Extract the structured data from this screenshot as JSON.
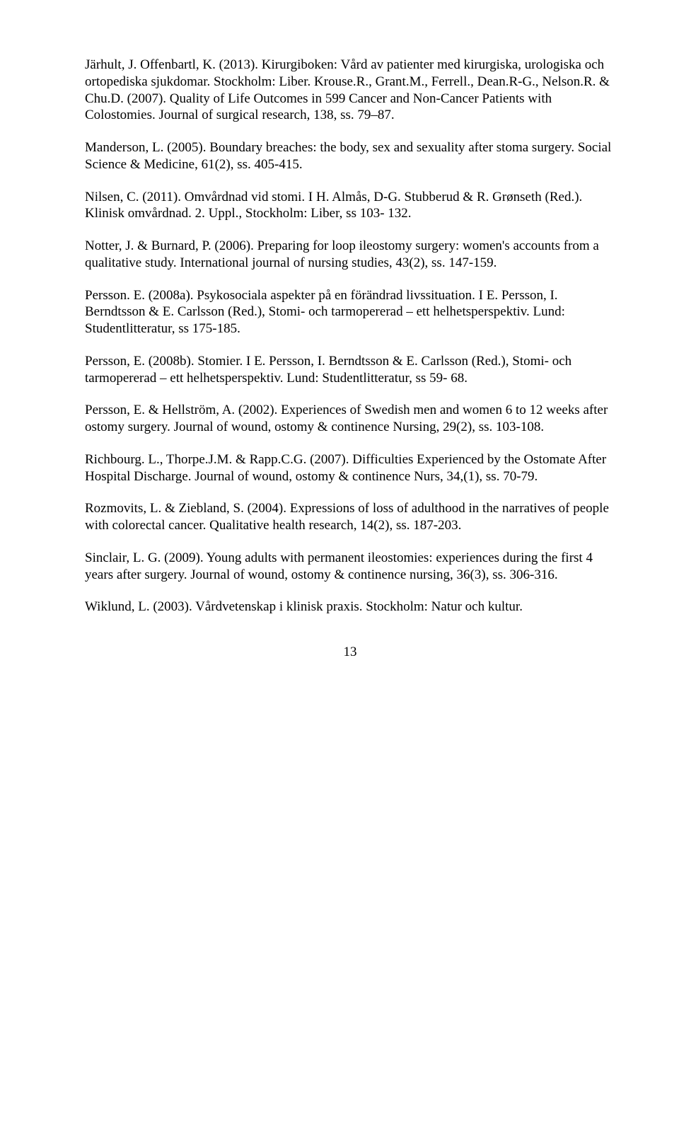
{
  "refs": [
    "Järhult, J. Offenbartl, K. (2013). Kirurgiboken: Vård av patienter med kirurgiska, urologiska och ortopediska sjukdomar. Stockholm: Liber. Krouse.R., Grant.M., Ferrell., Dean.R-G., Nelson.R. & Chu.D. (2007). Quality of Life Outcomes in 599 Cancer and Non-Cancer Patients with Colostomies. Journal of surgical research, 138, ss. 79–87.",
    "Manderson, L. (2005). Boundary breaches: the body, sex and sexuality after stoma surgery. Social Science & Medicine, 61(2), ss. 405-415.",
    "Nilsen, C. (2011). Omvårdnad vid stomi. I H. Almås, D-G. Stubberud & R. Grønseth (Red.). Klinisk omvårdnad. 2. Uppl., Stockholm: Liber, ss 103- 132.",
    "Notter, J. & Burnard, P. (2006). Preparing for loop ileostomy surgery: women's accounts from a qualitative study. International journal of nursing studies, 43(2), ss. 147-159.",
    "Persson. E. (2008a). Psykosociala aspekter på en förändrad livssituation. I E. Persson, I. Berndtsson & E. Carlsson (Red.), Stomi- och tarmopererad – ett helhetsperspektiv. Lund: Studentlitteratur, ss 175-185.",
    "Persson, E. (2008b). Stomier. I E. Persson, I. Berndtsson & E. Carlsson (Red.), Stomi- och tarmopererad – ett helhetsperspektiv. Lund: Studentlitteratur, ss 59- 68.",
    "Persson, E. & Hellström, A. (2002). Experiences of Swedish men and women 6 to 12 weeks after ostomy surgery. Journal of wound, ostomy & continence Nursing, 29(2), ss. 103-108.",
    "Richbourg. L., Thorpe.J.M. & Rapp.C.G. (2007). Difficulties Experienced by the Ostomate After Hospital Discharge. Journal of wound, ostomy & continence Nurs, 34,(1), ss. 70-79.",
    "Rozmovits, L. & Ziebland, S. (2004). Expressions of loss of adulthood in the narratives of people with colorectal cancer. Qualitative health research, 14(2), ss. 187-203.",
    "Sinclair, L. G. (2009). Young adults with permanent ileostomies: experiences during the first 4 years after surgery. Journal of wound, ostomy & continence nursing, 36(3), ss. 306-316.",
    "Wiklund, L. (2003). Vårdvetenskap i klinisk praxis. Stockholm: Natur och kultur."
  ],
  "page_number": "13"
}
